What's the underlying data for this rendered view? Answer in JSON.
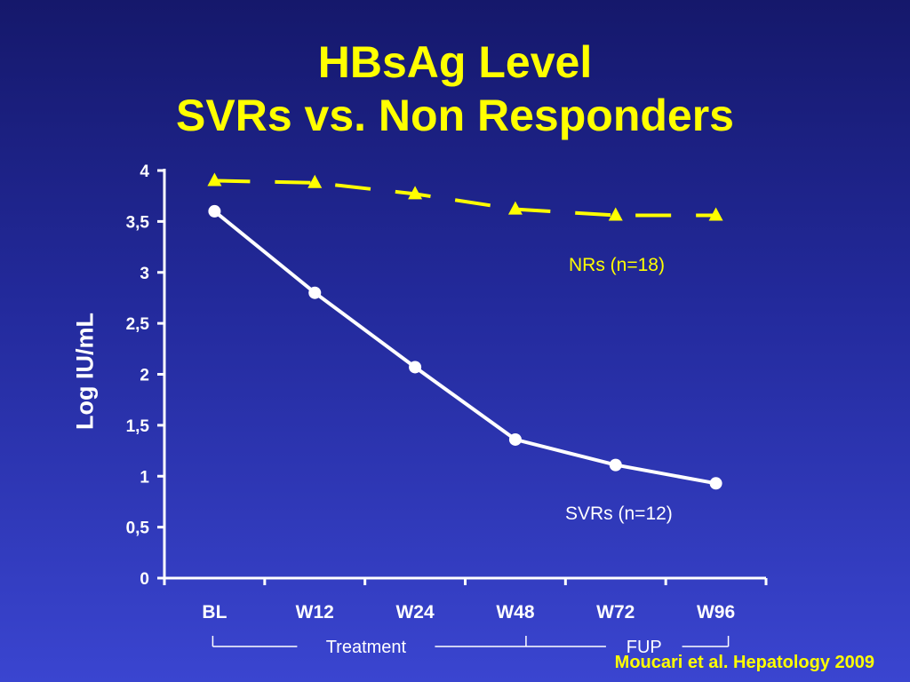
{
  "title": {
    "line1": "HBsAg Level",
    "line2": "SVRs vs. Non Responders"
  },
  "colors": {
    "title": "#ffff00",
    "nr_series": "#ffff00",
    "svr_series": "#ffffff",
    "axis": "#ffffff"
  },
  "chart_data": {
    "type": "line",
    "ylabel": "Log IU/mL",
    "ylim": [
      0,
      4
    ],
    "yticks": [
      "0",
      "0,5",
      "1",
      "1,5",
      "2",
      "2,5",
      "3",
      "3,5",
      "4"
    ],
    "categories": [
      "BL",
      "W12",
      "W24",
      "W48",
      "W72",
      "W96"
    ],
    "grid": false,
    "series": [
      {
        "name": "NRs (n=18)",
        "values": [
          3.9,
          3.88,
          3.77,
          3.62,
          3.56,
          3.56
        ],
        "style": "dashed",
        "marker": "triangle"
      },
      {
        "name": "SVRs (n=12)",
        "values": [
          3.6,
          2.8,
          2.07,
          1.36,
          1.11,
          0.93
        ],
        "style": "solid",
        "marker": "circle"
      }
    ],
    "periods": [
      {
        "label": "Treatment",
        "from": 0,
        "to": 3
      },
      {
        "label": "FUP",
        "from": 3,
        "to": 5
      }
    ]
  },
  "citation": "Moucari et al. Hepatology 2009"
}
